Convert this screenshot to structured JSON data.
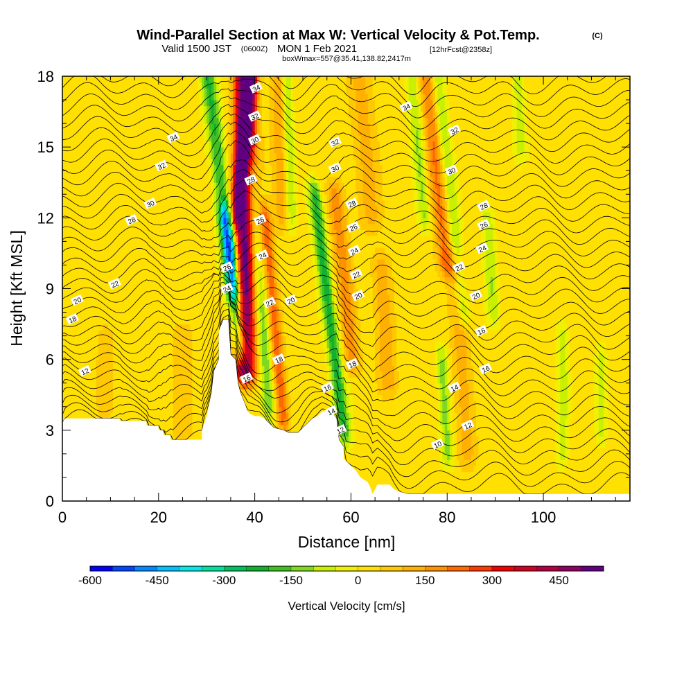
{
  "chart_data": {
    "type": "heatmap",
    "title": "Wind-Parallel Section at Max W: Vertical Velocity & Pot.Temp.",
    "title_mark": "(C)",
    "subtitle_parts": {
      "valid_a": "Valid 1500 JST",
      "valid_b": "(0600Z)",
      "valid_c": "MON 1 Feb 2021",
      "valid_d": "[12hrFcst@2358z]"
    },
    "subtitle2": "boxWmax=557@35.41,138.82,2417m",
    "xlabel": "Distance [nm]",
    "ylabel": "Height [Kft MSL]",
    "xlim": [
      0,
      118
    ],
    "ylim": [
      0,
      18
    ],
    "x_ticks": [
      "0",
      "20",
      "40",
      "60",
      "80",
      "100"
    ],
    "y_ticks": [
      "0",
      "3",
      "6",
      "9",
      "12",
      "15",
      "18"
    ],
    "colorbar": {
      "label": "Vertical Velocity [cm/s]",
      "range": [
        -600,
        550
      ],
      "tick_labels": [
        "-600",
        "-450",
        "-300",
        "-150",
        "0",
        "150",
        "300",
        "450"
      ],
      "colors": [
        "#0000ff",
        "#0046ff",
        "#0088ff",
        "#00c0ff",
        "#00e8e8",
        "#00e0a0",
        "#00c060",
        "#10b030",
        "#40c020",
        "#80d820",
        "#c8f000",
        "#f0f000",
        "#ffe000",
        "#ffc800",
        "#ffb000",
        "#ff9000",
        "#ff6800",
        "#ff3800",
        "#f00000",
        "#d00020",
        "#b00040",
        "#900060",
        "#600080"
      ]
    },
    "terrain_profile": [
      [
        0,
        3.3
      ],
      [
        0.5,
        3.5
      ],
      [
        12,
        3.5
      ],
      [
        12,
        3.4
      ],
      [
        17.5,
        3.4
      ],
      [
        17.5,
        3.2
      ],
      [
        20,
        3.2
      ],
      [
        20,
        3.0
      ],
      [
        21,
        3.0
      ],
      [
        21,
        2.8
      ],
      [
        22.5,
        2.8
      ],
      [
        22.5,
        2.6
      ],
      [
        29,
        2.6
      ],
      [
        29,
        3.0
      ],
      [
        30,
        3.6
      ],
      [
        31,
        4.6
      ],
      [
        31.5,
        5.5
      ],
      [
        32.5,
        6.0
      ],
      [
        32.5,
        7.2
      ],
      [
        33.5,
        7.7
      ],
      [
        34.5,
        7.7
      ],
      [
        35,
        6.2
      ],
      [
        36,
        6.0
      ],
      [
        36.5,
        5.0
      ],
      [
        37,
        4.6
      ],
      [
        38,
        4.1
      ],
      [
        38.5,
        3.8
      ],
      [
        39,
        3.7
      ],
      [
        40,
        3.6
      ],
      [
        41,
        3.6
      ],
      [
        42,
        3.5
      ],
      [
        43,
        3.3
      ],
      [
        44,
        3.1
      ],
      [
        46,
        3.0
      ],
      [
        47,
        2.9
      ],
      [
        48,
        2.9
      ],
      [
        49,
        2.9
      ],
      [
        50,
        3.1
      ],
      [
        51,
        3.3
      ],
      [
        52,
        3.5
      ],
      [
        53,
        3.6
      ],
      [
        54,
        3.8
      ],
      [
        56,
        3.8
      ],
      [
        57,
        3.5
      ],
      [
        57.5,
        2.6
      ],
      [
        58.5,
        2.3
      ],
      [
        58.5,
        1.8
      ],
      [
        60,
        1.5
      ],
      [
        61,
        1.3
      ],
      [
        62,
        1.0
      ],
      [
        63.5,
        0.8
      ],
      [
        64,
        0.6
      ],
      [
        64.5,
        0.3
      ],
      [
        65,
        0.5
      ],
      [
        65.5,
        0.7
      ],
      [
        68,
        0.7
      ],
      [
        69,
        0.5
      ],
      [
        70,
        0.4
      ],
      [
        72,
        0.3
      ],
      [
        118,
        0.3
      ]
    ],
    "vertical_velocity_bands": [
      {
        "x": 38,
        "dxdz": 0.0,
        "width": 2.2,
        "w": 520,
        "zmin": 5.5,
        "zmax": 18
      },
      {
        "x": 37.5,
        "dxdz": 0.55,
        "width": 1.4,
        "w": 300,
        "zmin": 12,
        "zmax": 18
      },
      {
        "x": 35.5,
        "dxdz": -0.55,
        "width": 1.4,
        "w": -380,
        "zmin": 6.5,
        "zmax": 12
      },
      {
        "x": 33,
        "dxdz": -0.6,
        "width": 1.6,
        "w": -220,
        "zmin": 9,
        "zmax": 18
      },
      {
        "x": 44,
        "dxdz": -0.45,
        "width": 1.4,
        "w": 220,
        "zmin": 3.5,
        "zmax": 12
      },
      {
        "x": 41,
        "dxdz": -0.4,
        "width": 1.5,
        "w": -180,
        "zmin": 4,
        "zmax": 14
      },
      {
        "x": 45.5,
        "dxdz": -0.2,
        "width": 1.8,
        "w": 130,
        "zmin": 12,
        "zmax": 18
      },
      {
        "x": 47,
        "dxdz": -0.15,
        "width": 1.2,
        "w": -150,
        "zmin": 12,
        "zmax": 18
      },
      {
        "x": 55.5,
        "dxdz": -0.6,
        "width": 1.4,
        "w": -240,
        "zmin": 3.0,
        "zmax": 13
      },
      {
        "x": 58.5,
        "dxdz": -0.5,
        "width": 1.8,
        "w": 160,
        "zmin": 6,
        "zmax": 13
      },
      {
        "x": 63,
        "dxdz": -0.35,
        "width": 2.5,
        "w": 100,
        "zmin": 12,
        "zmax": 18
      },
      {
        "x": 67,
        "dxdz": -0.3,
        "width": 2.0,
        "w": 120,
        "zmin": 5,
        "zmax": 10
      },
      {
        "x": 74,
        "dxdz": -0.45,
        "width": 1.3,
        "w": -130,
        "zmin": 12,
        "zmax": 18
      },
      {
        "x": 78,
        "dxdz": -0.5,
        "width": 2.0,
        "w": 200,
        "zmin": 10,
        "zmax": 18
      },
      {
        "x": 80.5,
        "dxdz": -0.55,
        "width": 1.4,
        "w": -170,
        "zmin": 8,
        "zmax": 18
      },
      {
        "x": 79.5,
        "dxdz": -0.3,
        "width": 1.2,
        "w": -140,
        "zmin": 2,
        "zmax": 6
      },
      {
        "x": 83,
        "dxdz": -0.3,
        "width": 2.0,
        "w": 110,
        "zmin": 2,
        "zmax": 10
      },
      {
        "x": 89,
        "dxdz": -0.3,
        "width": 1.2,
        "w": -110,
        "zmin": 8,
        "zmax": 12
      },
      {
        "x": 95,
        "dxdz": -0.2,
        "width": 1.2,
        "w": -100,
        "zmin": 15,
        "zmax": 18
      },
      {
        "x": 25,
        "dxdz": 0.0,
        "width": 2.5,
        "w": 70,
        "zmin": 3,
        "zmax": 7
      },
      {
        "x": 9,
        "dxdz": 0.0,
        "width": 2.0,
        "w": 60,
        "zmin": 4,
        "zmax": 7
      },
      {
        "x": 104,
        "dxdz": 0.0,
        "width": 1.2,
        "w": -90,
        "zmin": 2,
        "zmax": 7
      },
      {
        "x": 112,
        "dxdz": 0.0,
        "width": 1.2,
        "w": -90,
        "zmin": 3,
        "zmax": 6
      }
    ],
    "theta_contour_labels": [
      {
        "text": "34",
        "x": 40.3,
        "z": 17.5
      },
      {
        "text": "32",
        "x": 40.0,
        "z": 16.3
      },
      {
        "text": "30",
        "x": 40.0,
        "z": 15.3
      },
      {
        "text": "28",
        "x": 39.2,
        "z": 13.6
      },
      {
        "text": "26",
        "x": 41.1,
        "z": 11.9
      },
      {
        "text": "24",
        "x": 41.6,
        "z": 10.4
      },
      {
        "text": "26",
        "x": 34.2,
        "z": 9.9
      },
      {
        "text": "24",
        "x": 34.2,
        "z": 9.0
      },
      {
        "text": "22",
        "x": 43.1,
        "z": 8.4
      },
      {
        "text": "20",
        "x": 47.5,
        "z": 8.5
      },
      {
        "text": "18",
        "x": 45.0,
        "z": 6.0
      },
      {
        "text": "16",
        "x": 38.3,
        "z": 5.2
      },
      {
        "text": "34",
        "x": 23.1,
        "z": 15.4
      },
      {
        "text": "32",
        "x": 20.6,
        "z": 14.2
      },
      {
        "text": "30",
        "x": 18.3,
        "z": 12.6
      },
      {
        "text": "28",
        "x": 14.4,
        "z": 11.9
      },
      {
        "text": "22",
        "x": 10.9,
        "z": 9.2
      },
      {
        "text": "20",
        "x": 3.1,
        "z": 8.5
      },
      {
        "text": "18",
        "x": 2.1,
        "z": 7.7
      },
      {
        "text": "12",
        "x": 4.7,
        "z": 5.5
      },
      {
        "text": "32",
        "x": 56.7,
        "z": 15.2
      },
      {
        "text": "30",
        "x": 56.7,
        "z": 14.1
      },
      {
        "text": "28",
        "x": 60.2,
        "z": 12.6
      },
      {
        "text": "26",
        "x": 60.5,
        "z": 11.6
      },
      {
        "text": "24",
        "x": 60.7,
        "z": 10.6
      },
      {
        "text": "22",
        "x": 61.1,
        "z": 9.6
      },
      {
        "text": "20",
        "x": 61.5,
        "z": 8.7
      },
      {
        "text": "18",
        "x": 60.3,
        "z": 5.8
      },
      {
        "text": "16",
        "x": 55.1,
        "z": 4.8
      },
      {
        "text": "14",
        "x": 55.9,
        "z": 3.8
      },
      {
        "text": "12",
        "x": 57.8,
        "z": 3.0
      },
      {
        "text": "34",
        "x": 71.5,
        "z": 16.7
      },
      {
        "text": "32",
        "x": 81.5,
        "z": 15.7
      },
      {
        "text": "30",
        "x": 80.9,
        "z": 14.0
      },
      {
        "text": "28",
        "x": 87.6,
        "z": 12.5
      },
      {
        "text": "26",
        "x": 87.6,
        "z": 11.7
      },
      {
        "text": "24",
        "x": 87.3,
        "z": 10.7
      },
      {
        "text": "22",
        "x": 82.5,
        "z": 9.9
      },
      {
        "text": "20",
        "x": 86.0,
        "z": 8.7
      },
      {
        "text": "16",
        "x": 87.1,
        "z": 7.2
      },
      {
        "text": "16",
        "x": 88.0,
        "z": 5.6
      },
      {
        "text": "14",
        "x": 81.5,
        "z": 4.8
      },
      {
        "text": "12",
        "x": 84.3,
        "z": 3.2
      },
      {
        "text": "10",
        "x": 78.0,
        "z": 2.4
      }
    ]
  }
}
